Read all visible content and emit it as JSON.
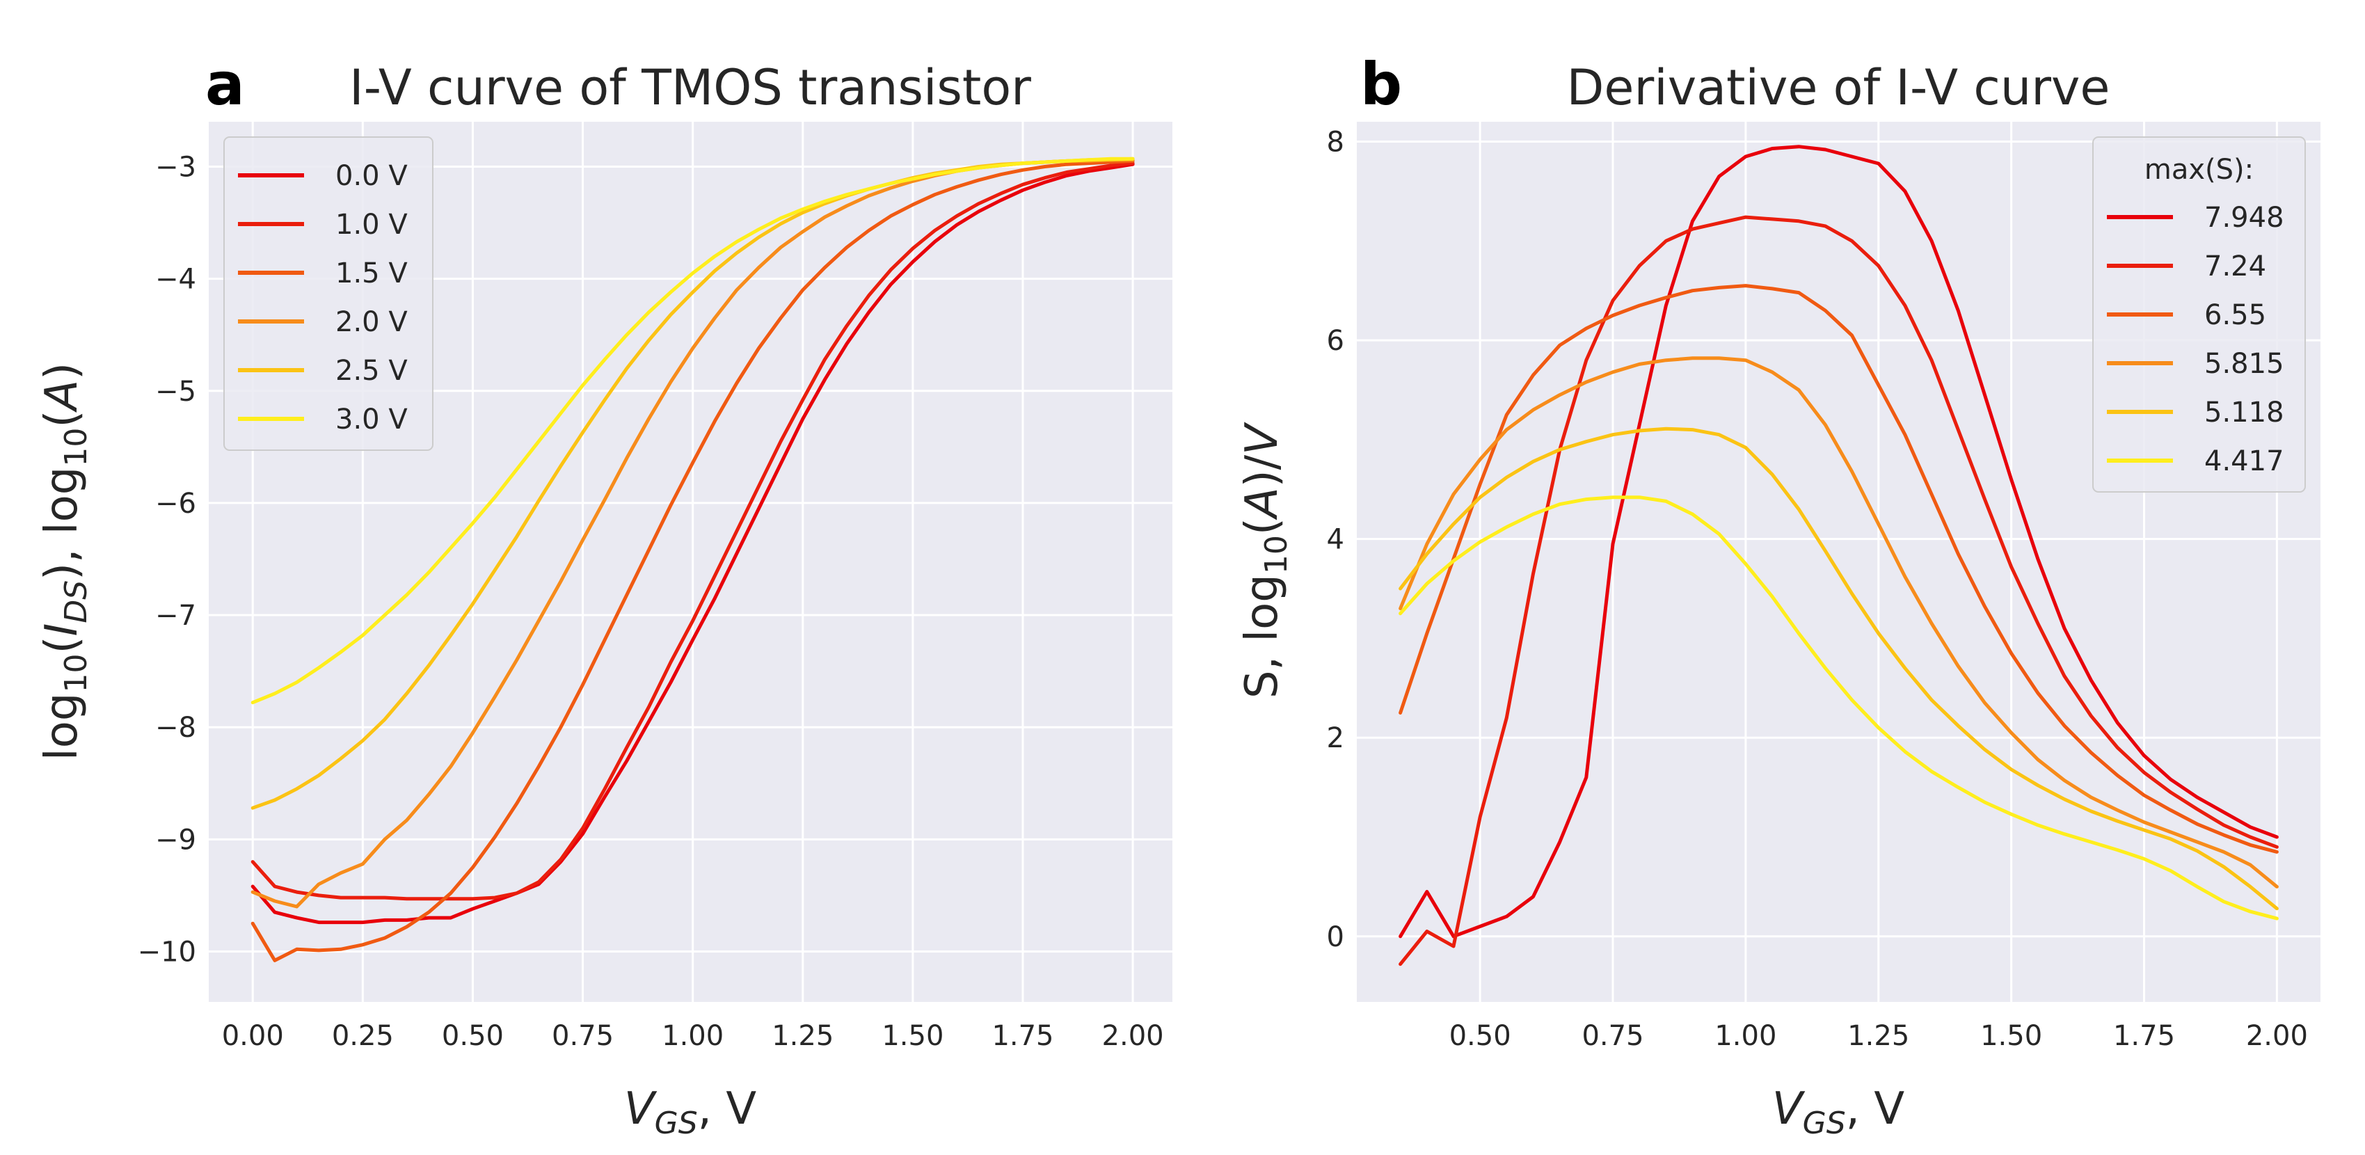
{
  "chart_data": [
    {
      "type": "line",
      "panel_letter": "a",
      "title": "I-V curve of TMOS transistor",
      "xlabel": "V_GS, V",
      "ylabel": "log10(I_DS), log10(A)",
      "xlim": [
        -0.1,
        2.09
      ],
      "ylim": [
        -10.45,
        -2.6
      ],
      "xticks": [
        0.0,
        0.25,
        0.5,
        0.75,
        1.0,
        1.25,
        1.5,
        1.75,
        2.0
      ],
      "xtick_labels": [
        "0.00",
        "0.25",
        "0.50",
        "0.75",
        "1.00",
        "1.25",
        "1.50",
        "1.75",
        "2.00"
      ],
      "yticks": [
        -3,
        -4,
        -5,
        -6,
        -7,
        -8,
        -9,
        -10
      ],
      "ytick_labels": [
        "−3",
        "−4",
        "−5",
        "−6",
        "−7",
        "−8",
        "−9",
        "−10"
      ],
      "grid": true,
      "legend": {
        "position": "top-left",
        "title": ""
      },
      "series": [
        {
          "name": "0.0 V",
          "color": "#e8000b",
          "x": [
            0,
            0.05,
            0.1,
            0.15,
            0.2,
            0.25,
            0.3,
            0.35,
            0.4,
            0.45,
            0.5,
            0.55,
            0.6,
            0.65,
            0.7,
            0.75,
            0.8,
            0.85,
            0.9,
            0.95,
            1.0,
            1.05,
            1.1,
            1.15,
            1.2,
            1.25,
            1.3,
            1.35,
            1.4,
            1.45,
            1.5,
            1.55,
            1.6,
            1.65,
            1.7,
            1.75,
            1.8,
            1.85,
            1.9,
            1.95,
            2.0
          ],
          "y": [
            -9.42,
            -9.65,
            -9.7,
            -9.74,
            -9.74,
            -9.74,
            -9.72,
            -9.72,
            -9.7,
            -9.7,
            -9.62,
            -9.55,
            -9.48,
            -9.4,
            -9.2,
            -8.95,
            -8.62,
            -8.3,
            -7.95,
            -7.6,
            -7.22,
            -6.85,
            -6.45,
            -6.05,
            -5.65,
            -5.25,
            -4.9,
            -4.58,
            -4.3,
            -4.05,
            -3.85,
            -3.67,
            -3.52,
            -3.4,
            -3.3,
            -3.21,
            -3.14,
            -3.08,
            -3.04,
            -3.01,
            -2.98
          ]
        },
        {
          "name": "1.0 V",
          "color": "#ea1e0d",
          "x": [
            0,
            0.05,
            0.1,
            0.15,
            0.2,
            0.25,
            0.3,
            0.35,
            0.4,
            0.45,
            0.5,
            0.55,
            0.6,
            0.65,
            0.7,
            0.75,
            0.8,
            0.85,
            0.9,
            0.95,
            1.0,
            1.05,
            1.1,
            1.15,
            1.2,
            1.25,
            1.3,
            1.35,
            1.4,
            1.45,
            1.5,
            1.55,
            1.6,
            1.65,
            1.7,
            1.75,
            1.8,
            1.85,
            1.9,
            1.95,
            2.0
          ],
          "y": [
            -9.2,
            -9.42,
            -9.47,
            -9.5,
            -9.52,
            -9.52,
            -9.52,
            -9.53,
            -9.53,
            -9.53,
            -9.53,
            -9.52,
            -9.48,
            -9.38,
            -9.18,
            -8.9,
            -8.55,
            -8.18,
            -7.82,
            -7.42,
            -7.05,
            -6.65,
            -6.25,
            -5.85,
            -5.45,
            -5.08,
            -4.72,
            -4.42,
            -4.15,
            -3.92,
            -3.73,
            -3.57,
            -3.44,
            -3.33,
            -3.24,
            -3.16,
            -3.1,
            -3.05,
            -3.02,
            -2.99,
            -2.97
          ]
        },
        {
          "name": "1.5 V",
          "color": "#f05a12",
          "x": [
            0,
            0.05,
            0.1,
            0.15,
            0.2,
            0.25,
            0.3,
            0.35,
            0.4,
            0.45,
            0.5,
            0.55,
            0.6,
            0.65,
            0.7,
            0.75,
            0.8,
            0.85,
            0.9,
            0.95,
            1.0,
            1.05,
            1.1,
            1.15,
            1.2,
            1.25,
            1.3,
            1.35,
            1.4,
            1.45,
            1.5,
            1.55,
            1.6,
            1.65,
            1.7,
            1.75,
            1.8,
            1.85,
            1.9,
            1.95,
            2.0
          ],
          "y": [
            -9.75,
            -10.08,
            -9.98,
            -9.99,
            -9.98,
            -9.94,
            -9.88,
            -9.78,
            -9.65,
            -9.48,
            -9.25,
            -8.98,
            -8.68,
            -8.35,
            -8.0,
            -7.62,
            -7.22,
            -6.82,
            -6.42,
            -6.02,
            -5.64,
            -5.27,
            -4.93,
            -4.62,
            -4.35,
            -4.1,
            -3.9,
            -3.72,
            -3.57,
            -3.44,
            -3.34,
            -3.25,
            -3.18,
            -3.12,
            -3.07,
            -3.03,
            -3.0,
            -2.98,
            -2.97,
            -2.96,
            -2.95
          ]
        },
        {
          "name": "2.0 V",
          "color": "#f78c1b",
          "x": [
            0,
            0.05,
            0.1,
            0.15,
            0.2,
            0.25,
            0.3,
            0.35,
            0.4,
            0.45,
            0.5,
            0.55,
            0.6,
            0.65,
            0.7,
            0.75,
            0.8,
            0.85,
            0.9,
            0.95,
            1.0,
            1.05,
            1.1,
            1.15,
            1.2,
            1.25,
            1.3,
            1.35,
            1.4,
            1.45,
            1.5,
            1.55,
            1.6,
            1.65,
            1.7,
            1.75,
            1.8,
            1.85,
            1.9,
            1.95,
            2.0
          ],
          "y": [
            -9.47,
            -9.55,
            -9.6,
            -9.4,
            -9.3,
            -9.22,
            -9.0,
            -8.83,
            -8.6,
            -8.35,
            -8.05,
            -7.73,
            -7.4,
            -7.05,
            -6.7,
            -6.33,
            -5.97,
            -5.6,
            -5.25,
            -4.92,
            -4.62,
            -4.35,
            -4.1,
            -3.9,
            -3.72,
            -3.58,
            -3.45,
            -3.35,
            -3.26,
            -3.19,
            -3.13,
            -3.08,
            -3.04,
            -3.01,
            -2.99,
            -2.97,
            -2.96,
            -2.95,
            -2.95,
            -2.94,
            -2.94
          ]
        },
        {
          "name": "2.5 V",
          "color": "#fbc314",
          "x": [
            0,
            0.05,
            0.1,
            0.15,
            0.2,
            0.25,
            0.3,
            0.35,
            0.4,
            0.45,
            0.5,
            0.55,
            0.6,
            0.65,
            0.7,
            0.75,
            0.8,
            0.85,
            0.9,
            0.95,
            1.0,
            1.05,
            1.1,
            1.15,
            1.2,
            1.25,
            1.3,
            1.35,
            1.4,
            1.45,
            1.5,
            1.55,
            1.6,
            1.65,
            1.7,
            1.75,
            1.8,
            1.85,
            1.9,
            1.95,
            2.0
          ],
          "y": [
            -8.72,
            -8.65,
            -8.55,
            -8.43,
            -8.28,
            -8.12,
            -7.93,
            -7.7,
            -7.45,
            -7.18,
            -6.9,
            -6.6,
            -6.3,
            -5.98,
            -5.67,
            -5.37,
            -5.08,
            -4.8,
            -4.55,
            -4.32,
            -4.12,
            -3.93,
            -3.77,
            -3.63,
            -3.51,
            -3.41,
            -3.33,
            -3.26,
            -3.2,
            -3.15,
            -3.1,
            -3.06,
            -3.03,
            -3.0,
            -2.98,
            -2.97,
            -2.96,
            -2.95,
            -2.94,
            -2.94,
            -2.93
          ]
        },
        {
          "name": "3.0 V",
          "color": "#ffee1d",
          "x": [
            0,
            0.05,
            0.1,
            0.15,
            0.2,
            0.25,
            0.3,
            0.35,
            0.4,
            0.45,
            0.5,
            0.55,
            0.6,
            0.65,
            0.7,
            0.75,
            0.8,
            0.85,
            0.9,
            0.95,
            1.0,
            1.05,
            1.1,
            1.15,
            1.2,
            1.25,
            1.3,
            1.35,
            1.4,
            1.45,
            1.5,
            1.55,
            1.6,
            1.65,
            1.7,
            1.75,
            1.8,
            1.85,
            1.9,
            1.95,
            2.0
          ],
          "y": [
            -7.78,
            -7.7,
            -7.6,
            -7.47,
            -7.33,
            -7.18,
            -7.0,
            -6.82,
            -6.62,
            -6.4,
            -6.18,
            -5.95,
            -5.7,
            -5.45,
            -5.2,
            -4.95,
            -4.72,
            -4.5,
            -4.3,
            -4.12,
            -3.95,
            -3.8,
            -3.67,
            -3.56,
            -3.46,
            -3.38,
            -3.31,
            -3.25,
            -3.2,
            -3.15,
            -3.11,
            -3.07,
            -3.04,
            -3.01,
            -2.99,
            -2.97,
            -2.96,
            -2.95,
            -2.94,
            -2.93,
            -2.93
          ]
        }
      ]
    },
    {
      "type": "line",
      "panel_letter": "b",
      "title": "Derivative of I-V curve",
      "xlabel": "V_GS, V",
      "ylabel": "S, log10(A)/V",
      "xlim": [
        0.268,
        2.082
      ],
      "ylim": [
        -0.66,
        8.2
      ],
      "xticks": [
        0.5,
        0.75,
        1.0,
        1.25,
        1.5,
        1.75,
        2.0
      ],
      "xtick_labels": [
        "0.50",
        "0.75",
        "1.00",
        "1.25",
        "1.50",
        "1.75",
        "2.00"
      ],
      "yticks": [
        0,
        2,
        4,
        6,
        8
      ],
      "ytick_labels": [
        "0",
        "2",
        "4",
        "6",
        "8"
      ],
      "grid": true,
      "legend": {
        "position": "top-right",
        "title": "max(S):"
      },
      "series": [
        {
          "name": "7.948",
          "color": "#e8000b",
          "x": [
            0.35,
            0.4,
            0.45,
            0.5,
            0.55,
            0.6,
            0.65,
            0.7,
            0.75,
            0.8,
            0.85,
            0.9,
            0.95,
            1.0,
            1.05,
            1.1,
            1.15,
            1.2,
            1.25,
            1.3,
            1.35,
            1.4,
            1.45,
            1.5,
            1.55,
            1.6,
            1.65,
            1.7,
            1.75,
            1.8,
            1.85,
            1.9,
            1.95,
            2.0
          ],
          "y": [
            0.0,
            0.45,
            0.0,
            0.1,
            0.2,
            0.4,
            0.95,
            1.6,
            3.95,
            5.15,
            6.35,
            7.2,
            7.65,
            7.85,
            7.93,
            7.95,
            7.92,
            7.85,
            7.78,
            7.5,
            7.0,
            6.3,
            5.45,
            4.6,
            3.8,
            3.1,
            2.58,
            2.15,
            1.82,
            1.58,
            1.4,
            1.25,
            1.1,
            1.0
          ]
        },
        {
          "name": "7.24",
          "color": "#ea1e0d",
          "x": [
            0.35,
            0.4,
            0.45,
            0.5,
            0.55,
            0.6,
            0.65,
            0.7,
            0.75,
            0.8,
            0.85,
            0.9,
            0.95,
            1.0,
            1.05,
            1.1,
            1.15,
            1.2,
            1.25,
            1.3,
            1.35,
            1.4,
            1.45,
            1.5,
            1.55,
            1.6,
            1.65,
            1.7,
            1.75,
            1.8,
            1.85,
            1.9,
            1.95,
            2.0
          ],
          "y": [
            -0.28,
            0.05,
            -0.1,
            1.2,
            2.2,
            3.65,
            4.9,
            5.8,
            6.4,
            6.75,
            7.0,
            7.12,
            7.18,
            7.24,
            7.22,
            7.2,
            7.15,
            7.0,
            6.75,
            6.35,
            5.8,
            5.1,
            4.4,
            3.72,
            3.15,
            2.62,
            2.22,
            1.9,
            1.65,
            1.45,
            1.28,
            1.12,
            1.0,
            0.9
          ]
        },
        {
          "name": "6.55",
          "color": "#f05a12",
          "x": [
            0.35,
            0.4,
            0.45,
            0.5,
            0.55,
            0.6,
            0.65,
            0.7,
            0.75,
            0.8,
            0.85,
            0.9,
            0.95,
            1.0,
            1.05,
            1.1,
            1.15,
            1.2,
            1.25,
            1.3,
            1.35,
            1.4,
            1.45,
            1.5,
            1.55,
            1.6,
            1.65,
            1.7,
            1.75,
            1.8,
            1.85,
            1.9,
            1.95,
            2.0
          ],
          "y": [
            2.25,
            3.05,
            3.8,
            4.55,
            5.25,
            5.65,
            5.95,
            6.12,
            6.25,
            6.35,
            6.43,
            6.5,
            6.53,
            6.55,
            6.52,
            6.48,
            6.3,
            6.05,
            5.55,
            5.05,
            4.45,
            3.85,
            3.32,
            2.85,
            2.45,
            2.12,
            1.85,
            1.62,
            1.42,
            1.27,
            1.13,
            1.02,
            0.92,
            0.85
          ]
        },
        {
          "name": "5.815",
          "color": "#f78c1b",
          "x": [
            0.35,
            0.4,
            0.45,
            0.5,
            0.55,
            0.6,
            0.65,
            0.7,
            0.75,
            0.8,
            0.85,
            0.9,
            0.95,
            1.0,
            1.05,
            1.1,
            1.15,
            1.2,
            1.25,
            1.3,
            1.35,
            1.4,
            1.45,
            1.5,
            1.55,
            1.6,
            1.65,
            1.7,
            1.75,
            1.8,
            1.85,
            1.9,
            1.95,
            2.0
          ],
          "y": [
            3.3,
            3.95,
            4.45,
            4.8,
            5.1,
            5.3,
            5.45,
            5.58,
            5.68,
            5.76,
            5.8,
            5.82,
            5.82,
            5.8,
            5.68,
            5.5,
            5.15,
            4.68,
            4.15,
            3.62,
            3.15,
            2.72,
            2.35,
            2.05,
            1.78,
            1.57,
            1.4,
            1.27,
            1.15,
            1.05,
            0.95,
            0.85,
            0.72,
            0.5
          ]
        },
        {
          "name": "5.118",
          "color": "#fbc314",
          "x": [
            0.35,
            0.4,
            0.45,
            0.5,
            0.55,
            0.6,
            0.65,
            0.7,
            0.75,
            0.8,
            0.85,
            0.9,
            0.95,
            1.0,
            1.05,
            1.1,
            1.15,
            1.2,
            1.25,
            1.3,
            1.35,
            1.4,
            1.45,
            1.5,
            1.55,
            1.6,
            1.65,
            1.7,
            1.75,
            1.8,
            1.85,
            1.9,
            1.95,
            2.0
          ],
          "y": [
            3.5,
            3.85,
            4.15,
            4.42,
            4.62,
            4.78,
            4.9,
            4.98,
            5.05,
            5.09,
            5.11,
            5.1,
            5.05,
            4.92,
            4.65,
            4.3,
            3.88,
            3.45,
            3.05,
            2.7,
            2.38,
            2.12,
            1.88,
            1.68,
            1.52,
            1.38,
            1.26,
            1.16,
            1.07,
            0.98,
            0.86,
            0.7,
            0.5,
            0.28
          ]
        },
        {
          "name": "4.417",
          "color": "#ffee1d",
          "x": [
            0.35,
            0.4,
            0.45,
            0.5,
            0.55,
            0.6,
            0.65,
            0.7,
            0.75,
            0.8,
            0.85,
            0.9,
            0.95,
            1.0,
            1.05,
            1.1,
            1.15,
            1.2,
            1.25,
            1.3,
            1.35,
            1.4,
            1.45,
            1.5,
            1.55,
            1.6,
            1.65,
            1.7,
            1.75,
            1.8,
            1.85,
            1.9,
            1.95,
            2.0
          ],
          "y": [
            3.25,
            3.55,
            3.78,
            3.97,
            4.12,
            4.25,
            4.35,
            4.4,
            4.42,
            4.42,
            4.38,
            4.25,
            4.05,
            3.75,
            3.42,
            3.05,
            2.7,
            2.38,
            2.1,
            1.86,
            1.66,
            1.5,
            1.35,
            1.23,
            1.12,
            1.03,
            0.95,
            0.87,
            0.78,
            0.66,
            0.5,
            0.35,
            0.25,
            0.18
          ]
        }
      ]
    }
  ]
}
